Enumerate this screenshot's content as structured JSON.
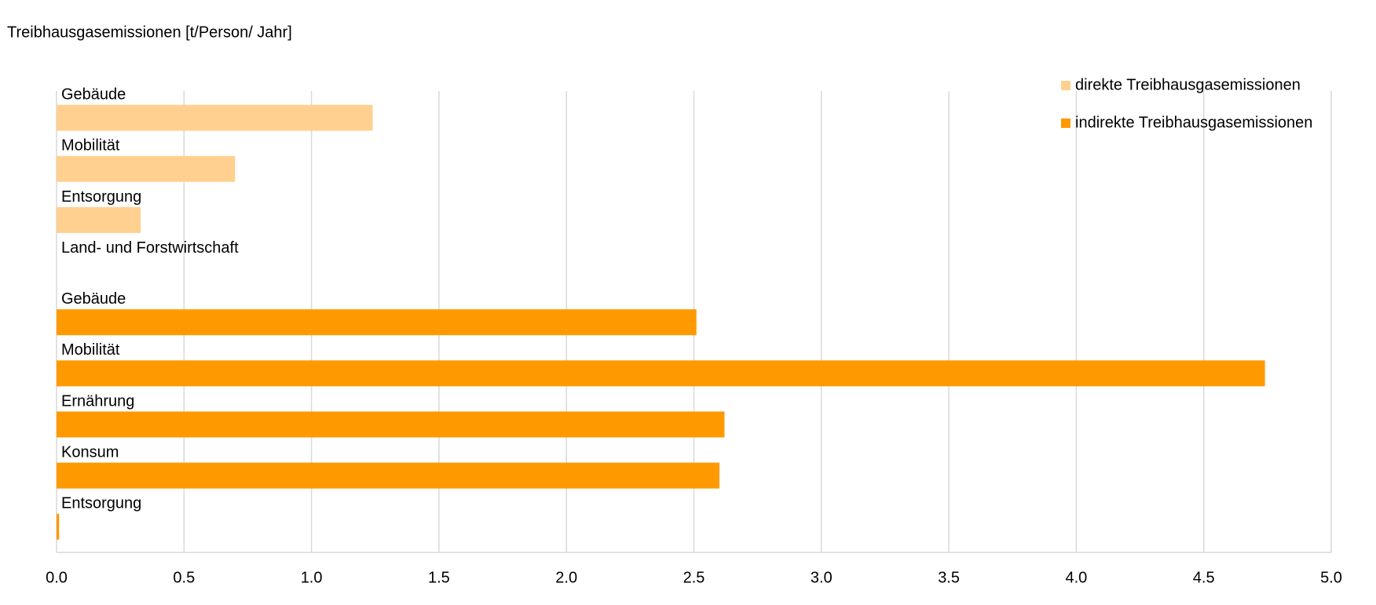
{
  "chart_data": {
    "type": "bar",
    "title": "Treibhausgasemissionen [t/Person/ Jahr]",
    "categories": [
      "Gebäude",
      "Mobilität",
      "Entsorgung",
      "Land- und Forstwirtschaft",
      "Gebäude",
      "Mobilität",
      "Ernährung",
      "Konsum",
      "Entsorgung"
    ],
    "series": [
      {
        "name": "direkte Treibhausgasemissionen",
        "color": "#ffd08f",
        "values": [
          1.24,
          0.7,
          0.33,
          0,
          null,
          null,
          null,
          null,
          null
        ]
      },
      {
        "name": "indirekte Treibhausgasemissionen",
        "color": "#ff9900",
        "values": [
          null,
          null,
          null,
          null,
          2.51,
          4.74,
          2.62,
          2.6,
          0.01
        ]
      }
    ],
    "xlim": [
      0,
      5
    ],
    "xticks": [
      {
        "value": 0,
        "label": "0.0"
      },
      0.5,
      {
        "value": 1,
        "label": "1.0"
      },
      1.5,
      {
        "value": 2,
        "label": "2.0"
      },
      2.5,
      {
        "value": 3,
        "label": "3.0"
      },
      3.5,
      {
        "value": 4,
        "label": "4.0"
      },
      4.5,
      {
        "value": 5,
        "label": "5.0"
      }
    ],
    "grid": true,
    "legend": "top-right"
  }
}
